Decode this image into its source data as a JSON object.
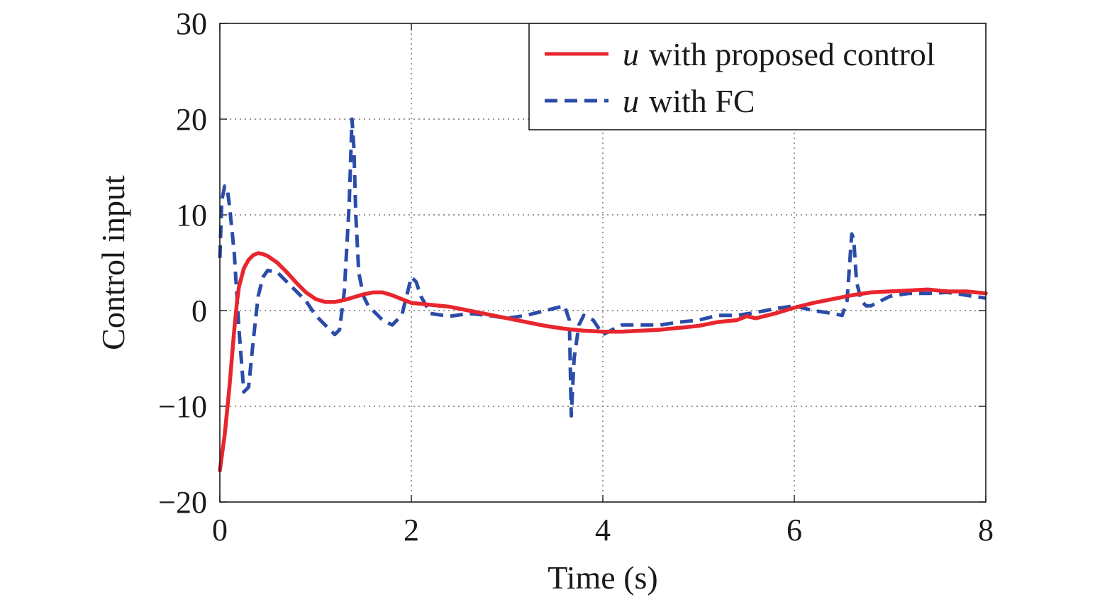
{
  "chart_data": {
    "type": "line",
    "title": "",
    "xlabel": "Time (s)",
    "ylabel": "Control input",
    "xlim": [
      0,
      8
    ],
    "ylim": [
      -20,
      30
    ],
    "xticks": [
      0,
      2,
      4,
      6,
      8
    ],
    "xtick_labels": [
      "0",
      "2",
      "4",
      "6",
      "8"
    ],
    "yticks": [
      -20,
      -10,
      0,
      10,
      20,
      30
    ],
    "ytick_labels": [
      "−20",
      "−10",
      "0",
      "10",
      "20",
      "30"
    ],
    "grid": true,
    "legend_position": "top-right",
    "series": [
      {
        "name": "u with proposed control",
        "legend_var": "u",
        "legend_rest": "with proposed control",
        "color": "#e8262d",
        "style": "solid",
        "x": [
          0,
          0.05,
          0.1,
          0.15,
          0.18,
          0.2,
          0.25,
          0.3,
          0.35,
          0.4,
          0.45,
          0.5,
          0.6,
          0.7,
          0.8,
          0.9,
          1.0,
          1.1,
          1.2,
          1.3,
          1.4,
          1.5,
          1.6,
          1.7,
          1.8,
          1.9,
          2.0,
          2.2,
          2.4,
          2.6,
          2.8,
          3.0,
          3.2,
          3.4,
          3.6,
          3.8,
          4.0,
          4.2,
          4.4,
          4.6,
          4.8,
          5.0,
          5.2,
          5.4,
          5.5,
          5.6,
          5.8,
          6.0,
          6.2,
          6.4,
          6.6,
          6.8,
          7.0,
          7.2,
          7.4,
          7.6,
          7.8,
          8.0
        ],
        "y": [
          -16.7,
          -13,
          -8,
          -2,
          1,
          2.5,
          4.4,
          5.3,
          5.8,
          6.0,
          5.9,
          5.7,
          5.0,
          4.0,
          2.9,
          1.9,
          1.2,
          0.9,
          0.9,
          1.1,
          1.4,
          1.7,
          1.9,
          1.9,
          1.6,
          1.2,
          0.8,
          0.6,
          0.4,
          0.0,
          -0.4,
          -0.8,
          -1.2,
          -1.6,
          -1.9,
          -2.1,
          -2.2,
          -2.2,
          -2.1,
          -2.0,
          -1.8,
          -1.6,
          -1.2,
          -1.0,
          -0.6,
          -0.8,
          -0.3,
          0.3,
          0.8,
          1.2,
          1.6,
          1.9,
          2.0,
          2.1,
          2.2,
          2.0,
          2.0,
          1.8
        ]
      },
      {
        "name": "u with FC",
        "legend_var": "u",
        "legend_rest": "with FC",
        "color": "#2b4ca8",
        "style": "dashed",
        "x": [
          0,
          0.02,
          0.05,
          0.08,
          0.1,
          0.15,
          0.2,
          0.25,
          0.3,
          0.35,
          0.4,
          0.45,
          0.5,
          0.6,
          0.7,
          0.8,
          0.9,
          1.0,
          1.1,
          1.2,
          1.25,
          1.3,
          1.35,
          1.38,
          1.4,
          1.42,
          1.45,
          1.5,
          1.55,
          1.6,
          1.7,
          1.8,
          1.9,
          2.0,
          2.05,
          2.1,
          2.2,
          2.4,
          2.6,
          2.8,
          3.0,
          3.2,
          3.4,
          3.6,
          3.65,
          3.67,
          3.7,
          3.75,
          3.8,
          3.9,
          4.0,
          4.1,
          4.2,
          4.4,
          4.6,
          4.8,
          5.0,
          5.2,
          5.4,
          5.6,
          5.8,
          6.0,
          6.2,
          6.4,
          6.5,
          6.55,
          6.6,
          6.62,
          6.65,
          6.7,
          6.75,
          6.8,
          6.9,
          7.0,
          7.2,
          7.4,
          7.6,
          7.8,
          8.0
        ],
        "y": [
          5.5,
          11.5,
          13.0,
          12.5,
          11.0,
          6.0,
          -2.0,
          -8.5,
          -8.0,
          -3.0,
          1.5,
          3.5,
          4.2,
          4.0,
          3.0,
          2.0,
          1.0,
          -0.5,
          -1.5,
          -2.5,
          -2.0,
          2.0,
          11.0,
          20.0,
          17.0,
          10.0,
          4.0,
          1.5,
          0.5,
          0.0,
          -1.0,
          -1.5,
          -0.5,
          3.5,
          3.0,
          1.5,
          -0.3,
          -0.6,
          -0.3,
          -0.5,
          -0.8,
          -0.5,
          0.0,
          0.5,
          -1.0,
          -11.0,
          -5.0,
          -1.5,
          -0.5,
          -1.0,
          -2.5,
          -2.0,
          -1.5,
          -1.5,
          -1.5,
          -1.2,
          -1.0,
          -0.5,
          -0.5,
          -0.2,
          0.2,
          0.5,
          0.0,
          -0.3,
          -0.5,
          1.0,
          8.0,
          7.5,
          3.0,
          1.0,
          0.5,
          0.5,
          1.0,
          1.5,
          1.8,
          1.8,
          1.9,
          1.6,
          1.3
        ]
      }
    ]
  }
}
